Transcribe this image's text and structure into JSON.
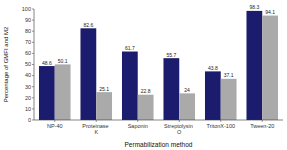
{
  "chart_data": {
    "type": "bar",
    "categories": [
      "NP-40",
      "Proteinase K",
      "Saponin",
      "Streptolysin O",
      "TritonX-100",
      "Tween-20"
    ],
    "series": [
      {
        "color": "#1c1c6e",
        "values": [
          48.6,
          82.6,
          61.7,
          55.7,
          43.8,
          98.3
        ]
      },
      {
        "color": "#aaaaaa",
        "values": [
          50.1,
          25.1,
          22.8,
          24,
          37.1,
          94.1
        ]
      }
    ],
    "xlabel": "Permabilization method",
    "ylabel": "Percentage of GMFI and M2",
    "ylim": [
      0,
      100
    ],
    "yticks": [
      0,
      10,
      20,
      30,
      40,
      50,
      60,
      70,
      80,
      90,
      100
    ],
    "data_labels": true,
    "grid": false
  }
}
